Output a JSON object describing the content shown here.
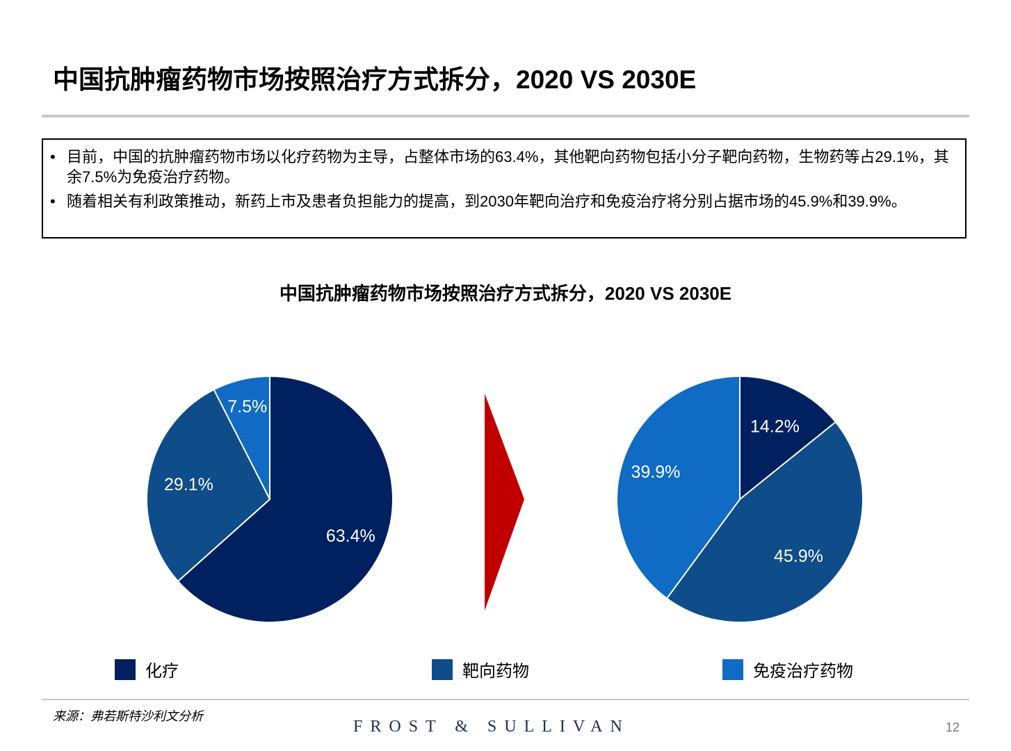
{
  "title": "中国抗肿瘤药物市场按照治疗方式拆分，2020 VS 2030E",
  "bullets": [
    "目前，中国的抗肿瘤药物市场以化疗药物为主导，占整体市场的63.4%，其他靶向药物包括小分子靶向药物，生物药等占29.1%，其余7.5%为免疫治疗药物。",
    "随着相关有利政策推动，新药上市及患者负担能力的提高，到2030年靶向治疗和免疫治疗将分别占据市场的45.9%和39.9%。"
  ],
  "bullet_symbol": "•",
  "chart_data": {
    "type": "pie",
    "title": "中国抗肿瘤药物市场按照治疗方式拆分，2020 VS 2030E",
    "categories": [
      "化疗",
      "靶向药物",
      "免疫治疗药物"
    ],
    "colors": [
      "#012060",
      "#0e4c8a",
      "#0f6bc4"
    ],
    "pies": [
      {
        "name": "2020",
        "values": [
          63.4,
          29.1,
          7.5
        ],
        "labels": [
          "63.4%",
          "29.1%",
          "7.5%"
        ]
      },
      {
        "name": "2030E",
        "values": [
          14.2,
          45.9,
          39.9
        ],
        "labels": [
          "14.2%",
          "45.9%",
          "39.9%"
        ]
      }
    ],
    "arrow_color": "#c00000"
  },
  "legend": [
    {
      "label": "化疗",
      "color": "#012060"
    },
    {
      "label": "靶向药物",
      "color": "#0e4c8a"
    },
    {
      "label": "免疫治疗药物",
      "color": "#0f6bc4"
    }
  ],
  "source": "来源：弗若斯特沙利文分析",
  "logo_text": "FROST & SULLIVAN",
  "page_number": "12"
}
